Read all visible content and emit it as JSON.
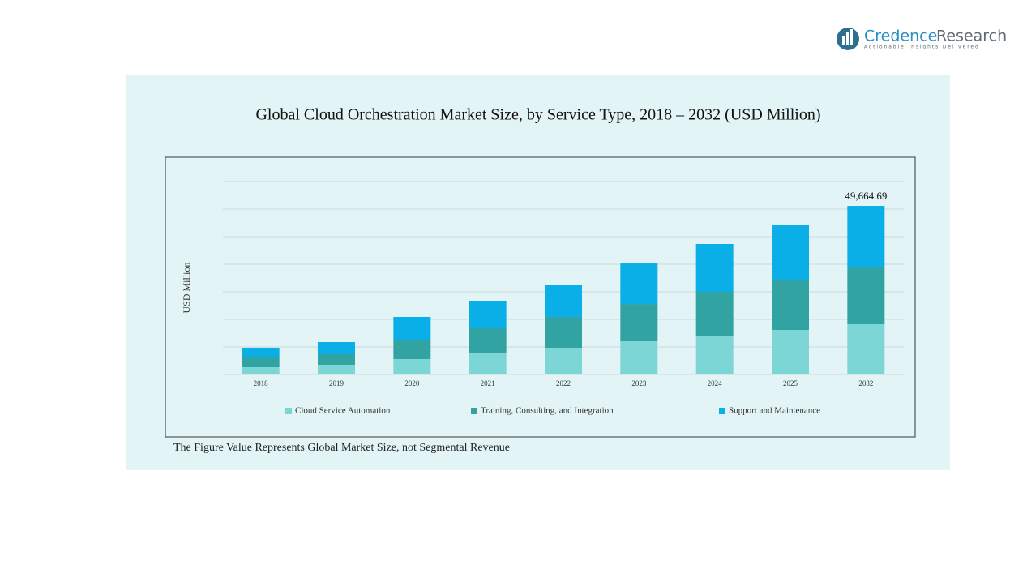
{
  "logo": {
    "brand": "Credence",
    "brand_suffix": "Research",
    "tagline": "Actionable Insights Delivered"
  },
  "chart_data": {
    "type": "stacked_bar",
    "title": "Global Cloud Orchestration Market Size, by Service Type, 2018 – 2032 (USD Million)",
    "y_label": "USD Million",
    "categories": [
      "2018",
      "2019",
      "2020",
      "2021",
      "2022",
      "2023",
      "2024",
      "2025",
      "2032"
    ],
    "series": [
      {
        "name": "Cloud Service Automation",
        "color": "#7dd6d6",
        "values": [
          2150,
          2870,
          4540,
          6450,
          7880,
          9790,
          11460,
          13130,
          14810
        ]
      },
      {
        "name": "Training, Consulting, and Integration",
        "color": "#32a3a3",
        "values": [
          2870,
          3100,
          5730,
          7160,
          9070,
          10980,
          12900,
          14570,
          16720
        ]
      },
      {
        "name": "Support and Maintenance",
        "color": "#0aafe8",
        "values": [
          2870,
          3580,
          6690,
          8120,
          9550,
          11940,
          14090,
          16240,
          18134.69
        ]
      }
    ],
    "annotation": {
      "value": 49664.69,
      "label": "49,664.69",
      "category": "2032"
    },
    "ylim": [
      0,
      56840
    ],
    "yticks": [
      0,
      8120,
      16240,
      24360,
      32480,
      40600,
      48720,
      56840
    ],
    "grid": true,
    "legend": "bottom",
    "note": "The Figure Value Represents Global Market Size, not Segmental Revenue"
  }
}
